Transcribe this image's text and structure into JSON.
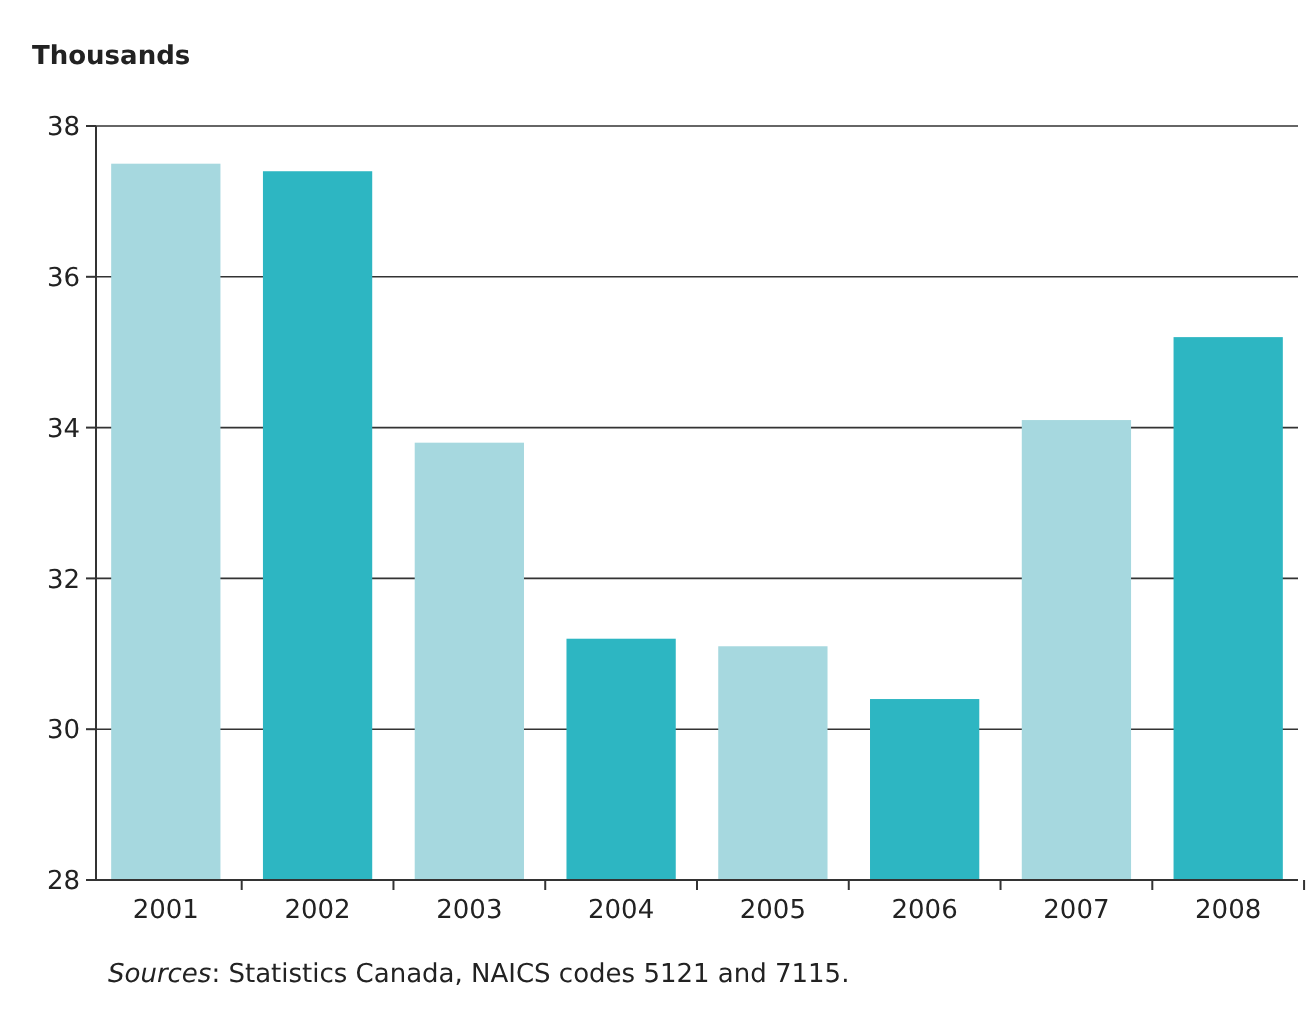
{
  "chart_data": {
    "type": "bar",
    "ylabel": "Thousands",
    "categories": [
      "2001",
      "2002",
      "2003",
      "2004",
      "2005",
      "2006",
      "2007",
      "2008"
    ],
    "values": [
      37.5,
      37.4,
      33.8,
      31.2,
      31.1,
      30.4,
      34.1,
      35.2
    ],
    "colors": [
      "#a6d8df",
      "#2db6c2",
      "#a6d8df",
      "#2db6c2",
      "#a6d8df",
      "#2db6c2",
      "#a6d8df",
      "#2db6c2"
    ],
    "ylim": [
      28,
      38
    ],
    "yticks": [
      28,
      30,
      32,
      34,
      36,
      38
    ],
    "grid": "y",
    "annotations": [
      "Sources: Statistics Canada, NAICS codes 5121 and 7115."
    ]
  }
}
